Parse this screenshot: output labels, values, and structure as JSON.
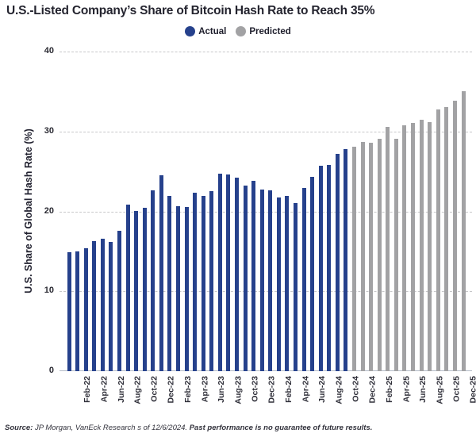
{
  "title": "U.S.-Listed Company’s Share of Bitcoin Hash Rate to Reach 35%",
  "legend": {
    "actual_label": "Actual",
    "predicted_label": "Predicted"
  },
  "colors": {
    "actual": "#26418C",
    "predicted": "#A2A2A4",
    "gridline": "#C7C7C9",
    "axis_line": "#B3BAC6"
  },
  "chart_data": {
    "type": "bar",
    "title": "U.S.-Listed Company’s Share of Bitcoin Hash Rate to Reach 35%",
    "xlabel": "",
    "ylabel": "U.S. Share of Global Hash Rate (%)",
    "ylim": [
      0,
      40
    ],
    "yticks": [
      0,
      10,
      20,
      30,
      40
    ],
    "grid": "horizontal-dashed",
    "legend_position": "top-center",
    "xtick_label_interval": 2,
    "categories": [
      "Jan-22",
      "Feb-22",
      "Mar-22",
      "Apr-22",
      "May-22",
      "Jun-22",
      "Jul-22",
      "Aug-22",
      "Sep-22",
      "Oct-22",
      "Nov-22",
      "Dec-22",
      "Jan-23",
      "Feb-23",
      "Mar-23",
      "Apr-23",
      "May-23",
      "Jun-23",
      "Jul-23",
      "Aug-23",
      "Sep-23",
      "Oct-23",
      "Nov-23",
      "Dec-23",
      "Jan-24",
      "Feb-24",
      "Mar-24",
      "Apr-24",
      "May-24",
      "Jun-24",
      "Jul-24",
      "Aug-24",
      "Sep-24",
      "Oct-24",
      "Nov-24",
      "Dec-24",
      "Jan-25",
      "Feb-25",
      "Mar-25",
      "Apr-25",
      "May-25",
      "Jun-25",
      "Jul-25",
      "Aug-25",
      "Sep-25",
      "Oct-25",
      "Nov-25",
      "Dec-25"
    ],
    "xtick_labels_shown": [
      "Feb-22",
      "Apr-22",
      "Jun-22",
      "Aug-22",
      "Oct-22",
      "Dec-22",
      "Feb-23",
      "Apr-23",
      "Jun-23",
      "Aug-23",
      "Oct-23",
      "Dec-23",
      "Feb-24",
      "Apr-24",
      "Jun-24",
      "Aug-24",
      "Oct-24",
      "Dec-24",
      "Feb-25",
      "Apr-25",
      "Jun-25",
      "Aug-25",
      "Oct-25",
      "Dec-25"
    ],
    "series": [
      {
        "name": "Actual",
        "color": "#26418C",
        "values": [
          14.9,
          15.0,
          15.4,
          16.3,
          16.6,
          16.2,
          17.6,
          20.8,
          20.1,
          20.4,
          22.6,
          24.5,
          21.9,
          20.6,
          20.5,
          22.3,
          21.9,
          22.5,
          24.7,
          24.6,
          24.2,
          23.2,
          23.8,
          22.7,
          22.6,
          21.7,
          21.9,
          21.0,
          22.9,
          24.3,
          25.7,
          25.8,
          27.2,
          27.8,
          null,
          null,
          null,
          null,
          null,
          null,
          null,
          null,
          null,
          null,
          null,
          null,
          null,
          null
        ]
      },
      {
        "name": "Predicted",
        "color": "#A2A2A4",
        "values": [
          null,
          null,
          null,
          null,
          null,
          null,
          null,
          null,
          null,
          null,
          null,
          null,
          null,
          null,
          null,
          null,
          null,
          null,
          null,
          null,
          null,
          null,
          null,
          null,
          null,
          null,
          null,
          null,
          null,
          null,
          null,
          null,
          null,
          null,
          28.1,
          28.7,
          28.6,
          29.1,
          30.6,
          29.1,
          30.8,
          31.1,
          31.5,
          31.2,
          32.8,
          33.1,
          33.8,
          35.0
        ]
      }
    ]
  },
  "source": {
    "prefix": "Source: ",
    "note": "JP Morgan, VanEck Research s of 12/6/2024. ",
    "disclaimer": "Past performance is no guarantee of future results."
  }
}
